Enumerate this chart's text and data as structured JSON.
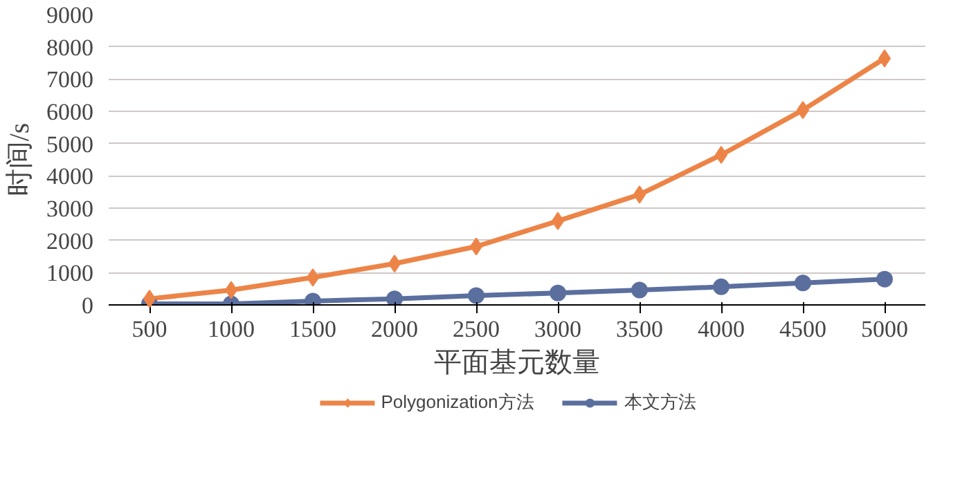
{
  "chart_data": {
    "type": "line",
    "xlabel": "平面基元数量",
    "ylabel": "时间/s",
    "categories": [
      "500",
      "1000",
      "1500",
      "2000",
      "2500",
      "3000",
      "3500",
      "4000",
      "4500",
      "5000"
    ],
    "series": [
      {
        "name": "Polygonization方法",
        "color": "#ed8447",
        "marker": "diamond",
        "values": [
          190,
          460,
          850,
          1280,
          1810,
          2600,
          3420,
          4650,
          6040,
          7640
        ]
      },
      {
        "name": "本文方法",
        "color": "#5b6f9e",
        "marker": "circle",
        "values": [
          30,
          30,
          120,
          190,
          290,
          370,
          460,
          560,
          680,
          800
        ]
      }
    ],
    "ylim": [
      0,
      9000
    ],
    "yticks": [
      0,
      1000,
      2000,
      3000,
      4000,
      5000,
      6000,
      7000,
      8000,
      9000
    ],
    "grid": "y",
    "legend": "bottom",
    "line_style": "solid"
  }
}
